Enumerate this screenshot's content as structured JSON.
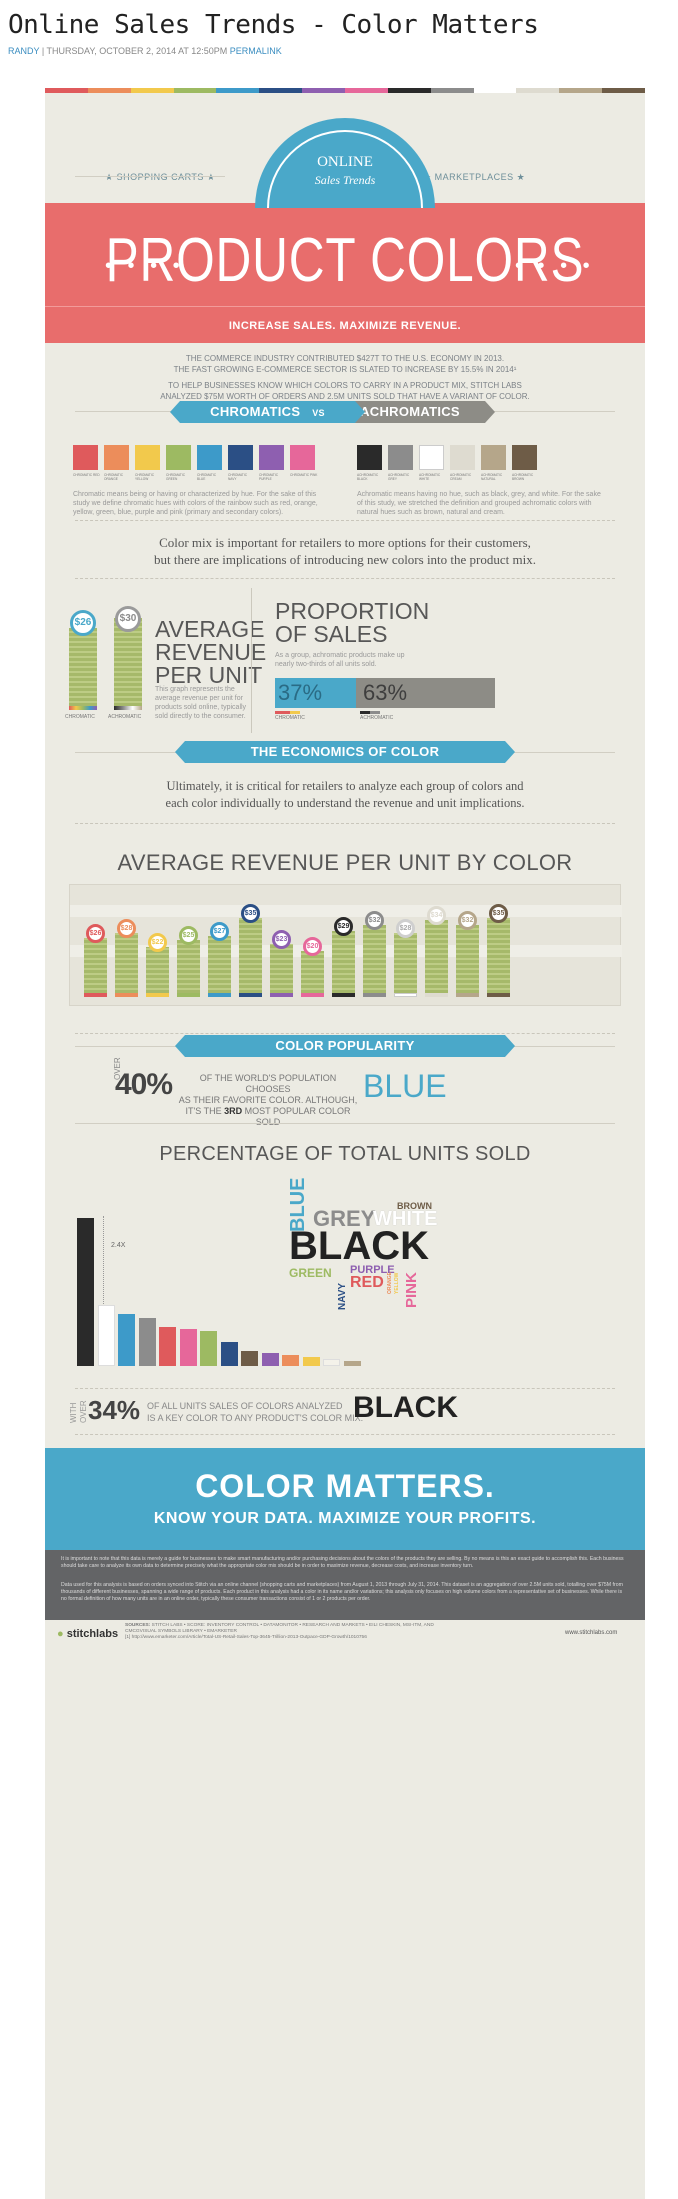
{
  "post": {
    "title": "Online Sales Trends - Color Matters",
    "author": "RANDY",
    "date": "| THURSDAY, OCTOBER 2, 2014 AT 12:50PM",
    "permalink": "PERMALINK"
  },
  "header": {
    "badge_top": "ONLINE",
    "badge_bottom": "Sales Trends",
    "left_tag": "★ SHOPPING CARTS ★",
    "right_tag": "★ MARKETPLACES ★",
    "title": "PRODUCT COLORS",
    "dots": "• • • •",
    "subtitle": "INCREASE SALES. MAXIMIZE REVENUE."
  },
  "intro": {
    "p1": "THE COMMERCE INDUSTRY CONTRIBUTED $427T TO THE U.S. ECONOMY IN 2013.",
    "p2": "THE FAST GROWING E-COMMERCE SECTOR IS SLATED TO INCREASE BY 15.5% IN 2014¹",
    "p3": "TO HELP BUSINESSES KNOW WHICH COLORS TO CARRY IN A PRODUCT MIX, STITCH LABS",
    "p4": "ANALYZED $75M WORTH OF ORDERS AND 2.5M UNITS SOLD THAT HAVE A VARIANT OF COLOR."
  },
  "chromatics": {
    "ribbon_left": "CHROMATICS",
    "vs": "VS",
    "ribbon_right": "ACHROMATICS",
    "chromatic_swatches": [
      {
        "color": "#df5a5c",
        "label": "CHROMATIC RED"
      },
      {
        "color": "#ec8d5b",
        "label": "CHROMATIC ORANGE"
      },
      {
        "color": "#f2c94c",
        "label": "CHROMATIC YELLOW"
      },
      {
        "color": "#9dba62",
        "label": "CHROMATIC GREEN"
      },
      {
        "color": "#3d9ac9",
        "label": "CHROMATIC BLUE"
      },
      {
        "color": "#2b4f85",
        "label": "CHROMATIC NAVY"
      },
      {
        "color": "#8e5fb0",
        "label": "CHROMATIC PURPLE"
      },
      {
        "color": "#e6679a",
        "label": "CHROMATIC PINK"
      }
    ],
    "achromatic_swatches": [
      {
        "color": "#2a2a2a",
        "label": "ACHROMATIC BLACK"
      },
      {
        "color": "#8c8c8c",
        "label": "ACHROMATIC GREY"
      },
      {
        "color": "#ffffff",
        "label": "ACHROMATIC WHITE"
      },
      {
        "color": "#dedbd0",
        "label": "ACHROMATIC CREAM"
      },
      {
        "color": "#b5a68a",
        "label": "ACHROMATIC NATURAL"
      },
      {
        "color": "#6e5c47",
        "label": "ACHROMATIC BROWN"
      }
    ],
    "chromatic_desc": "Chromatic means being or having or characterized by hue. For the sake of this study we define chromatic hues with colors of the rainbow such as red, orange, yellow, green, blue, purple and pink (primary and secondary colors).",
    "achromatic_desc": "Achromatic means having no hue, such as black, grey, and white. For the sake of this study, we stretched the definition and grouped achromatic colors with natural hues such as brown, natural and cream."
  },
  "mix": {
    "line1": "Color mix is important for retailers to more options for their customers,",
    "line2": "but there are implications of introducing new colors into the product mix."
  },
  "avg": {
    "chromatic_value": "$26",
    "achromatic_value": "$30",
    "chromatic_label": "CHROMATIC",
    "achromatic_label": "ACHROMATIC",
    "title1": "AVERAGE",
    "title2": "REVENUE",
    "title3": "PER UNIT",
    "desc": "This graph represents the average revenue per unit for products sold online, typically sold directly to the consumer."
  },
  "proportion": {
    "title1": "PROPORTION",
    "title2": "OF SALES",
    "desc": "As a group, achromatic products make up nearly two-thirds of all units sold.",
    "chromatic_pct": "37%",
    "achromatic_pct": "63%",
    "chromatic_share": 37,
    "chromatic_label": "CHROMATIC",
    "achromatic_label": "ACHROMATIC"
  },
  "economics": {
    "ribbon": "THE ECONOMICS OF COLOR",
    "line1": "Ultimately, it is critical for retailers to analyze each group of colors and",
    "line2": "each color individually to understand the revenue and unit implications."
  },
  "chart_data": [
    {
      "type": "bar",
      "title": "AVERAGE REVENUE PER UNIT BY COLOR",
      "categories": [
        "Red",
        "Orange",
        "Yellow",
        "Green",
        "Blue",
        "Navy",
        "Purple",
        "Pink",
        "Black",
        "Grey",
        "White",
        "Cream",
        "Natural",
        "Brown"
      ],
      "values": [
        26,
        28,
        22,
        25,
        27,
        35,
        23,
        20,
        29,
        32,
        28,
        34,
        32,
        35
      ],
      "labels": [
        "$26",
        "$28",
        "$22",
        "$25",
        "$27",
        "$35",
        "$23",
        "$20",
        "$29",
        "$32",
        "$28",
        "$34",
        "$32",
        "$35"
      ],
      "colors": [
        "#df5a5c",
        "#ec8d5b",
        "#f2c94c",
        "#9dba62",
        "#3d9ac9",
        "#2b4f85",
        "#8e5fb0",
        "#e6679a",
        "#2a2a2a",
        "#8c8c8c",
        "#ffffff",
        "#dedbd0",
        "#b5a68a",
        "#6e5c47"
      ]
    },
    {
      "type": "bar",
      "title": "PERCENTAGE OF TOTAL UNITS SOLD",
      "categories": [
        "Black",
        "White",
        "Blue",
        "Grey",
        "Red",
        "Pink",
        "Green",
        "Navy",
        "Brown",
        "Purple",
        "Orange",
        "Yellow",
        "Cream",
        "Natural"
      ],
      "values": [
        34,
        14,
        12,
        11,
        9,
        8.5,
        8,
        5.5,
        3.5,
        3,
        2.5,
        2,
        1.5,
        1.2
      ],
      "colors": [
        "#2a2a2a",
        "#ffffff",
        "#3d9ac9",
        "#8c8c8c",
        "#df5a5c",
        "#e6679a",
        "#9dba62",
        "#2b4f85",
        "#6e5c47",
        "#8e5fb0",
        "#ec8d5b",
        "#f2c94c",
        "#f4f2ea",
        "#b5a68a"
      ],
      "annotation": "2.4X"
    }
  ],
  "popularity": {
    "ribbon": "COLOR POPULARITY",
    "over": "OVER",
    "pct": "40%",
    "line1": "OF THE WORLD'S POPULATION CHOOSES",
    "line2": "AS THEIR FAVORITE COLOR. ALTHOUGH,",
    "line3a": "IT'S THE ",
    "line3b": "3RD",
    "line3c": " MOST POPULAR COLOR SOLD",
    "word": "BLUE"
  },
  "cloud": {
    "blue": "BLUE",
    "brown": "BROWN",
    "grey": "GREY",
    "white": "WHITE",
    "black": "BLACK",
    "green": "GREEN",
    "navy": "NAVY",
    "purple": "PURPLE",
    "red": "RED",
    "orange": "ORANGE",
    "yellow": "YELLOW",
    "pink": "PINK"
  },
  "black_stat": {
    "with": "WITH",
    "over": "OVER",
    "pct": "34%",
    "line1": "OF ALL UNITS SALES OF COLORS ANALYZED",
    "line2": "IS A KEY COLOR TO ANY PRODUCT'S COLOR MIX.",
    "word": "BLACK"
  },
  "footer": {
    "headline": "COLOR MATTERS.",
    "tagline": "KNOW YOUR DATA. MAXIMIZE YOUR PROFITS.",
    "disclaimer1": "It is important to note that this data is merely a guide for businesses to make smart manufacturing and/or purchasing decisions about the colors of the products they are selling. By no means is this an exact guide to accomplish this. Each business should take care to analyze its own data to determine precisely what the appropriate color mix should be in order to maximize revenue, decrease costs, and increase inventory turn.",
    "disclaimer2": "Data used for this analysis is based on orders synced into Stitch via an online channel (shopping carts and marketplaces) from August 1, 2013 through July 31, 2014. This dataset is an aggregation of over 2.5M units sold, totalling over $75M from thousands of different businesses, spanning a wide range of products. Each product in this analysis had a color in its name and/or variations; this analysis only focuses on high volume colors from a representative set of businesses. While there is no formal definition of how many units are in an online order, typically these consumer transactions consist of 1 or 2 products per order.",
    "logo": "stitchlabs",
    "sources_label": "SOURCES:",
    "sources": "STITCH LABS  •  SCORE: INVENTORY CONTROL  •  DATAMONITOR  •  RESEARCH AND MARKETS  •  EILI CHESKIN, MSI-ITM, AND CMCGVISUAL SYMBOLS LIBRARY  •  EMARKETER",
    "url_note": "[1] http://www.emarketer.com/Article/Total-US-Retail-Sales-Top-3645-Trillion-2013-Outpace-GDP-Growth/1010756",
    "site": "www.stitchlabs.com"
  },
  "palette": {
    "blue": "#4aa8c9",
    "coral": "#e86d6c",
    "olive": "#a6b96a",
    "bg": "#ecebe3"
  }
}
